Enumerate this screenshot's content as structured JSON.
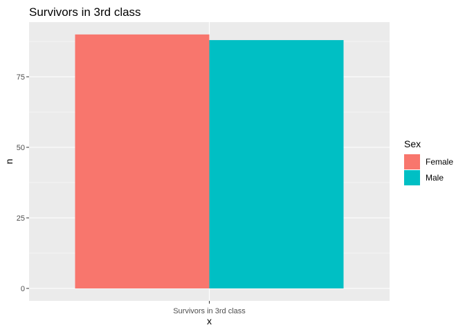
{
  "chart_data": {
    "type": "bar",
    "title": "Survivors in 3rd class",
    "xlabel": "x",
    "ylabel": "n",
    "categories": [
      "Survivors in 3rd class"
    ],
    "series": [
      {
        "name": "Female",
        "values": [
          90
        ],
        "color": "#F8766D"
      },
      {
        "name": "Male",
        "values": [
          88
        ],
        "color": "#00BFC4"
      }
    ],
    "ylim": [
      0,
      94.5
    ],
    "yticks": [
      0,
      25,
      50,
      75
    ],
    "ytick_labels": [
      "0",
      "25",
      "50",
      "75"
    ],
    "grid": true,
    "legend": {
      "title": "Sex",
      "position": "right"
    },
    "colors": {
      "panel": "#EBEBEB",
      "grid": "#FFFFFF"
    }
  }
}
